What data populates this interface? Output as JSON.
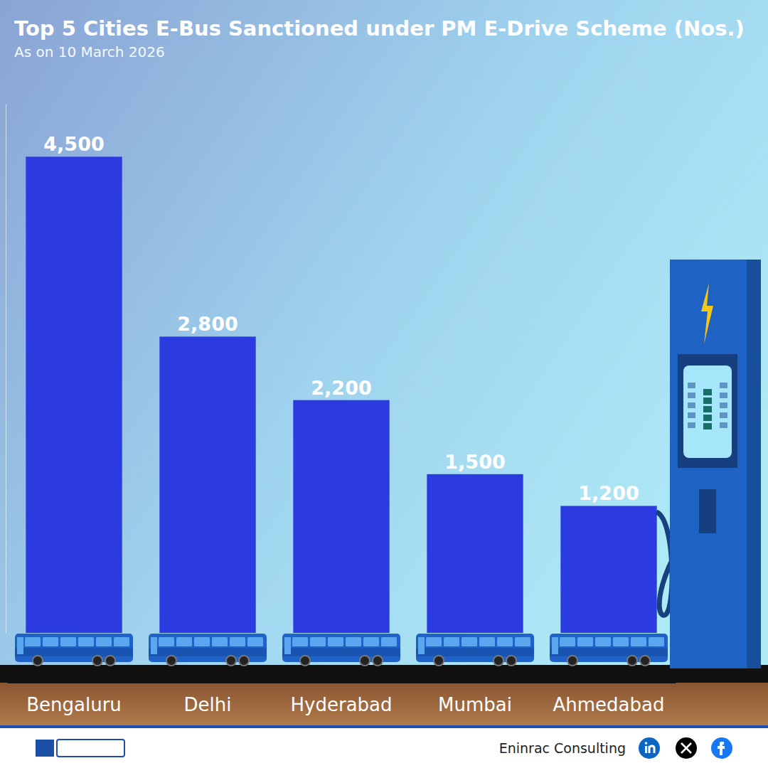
{
  "chart_data": {
    "type": "bar",
    "title": "Top 5 Cities E-Bus Sanctioned under PM E-Drive Scheme (Nos.)",
    "subtitle": "As on 10 March 2026",
    "categories": [
      "Bengaluru",
      "Delhi",
      "Hyderabad",
      "Mumbai",
      "Ahmedabad"
    ],
    "values": [
      4500,
      2800,
      2200,
      1500,
      1200
    ],
    "value_labels": [
      "4,500",
      "2,800",
      "2,200",
      "1,500",
      "1,200"
    ],
    "color": "#2b3be0",
    "ylim": [
      0,
      5000
    ],
    "yticks": [],
    "grid": false,
    "data_labels": true,
    "tick_labels": "x"
  },
  "footer": {
    "source": "Eninrac Consulting"
  }
}
